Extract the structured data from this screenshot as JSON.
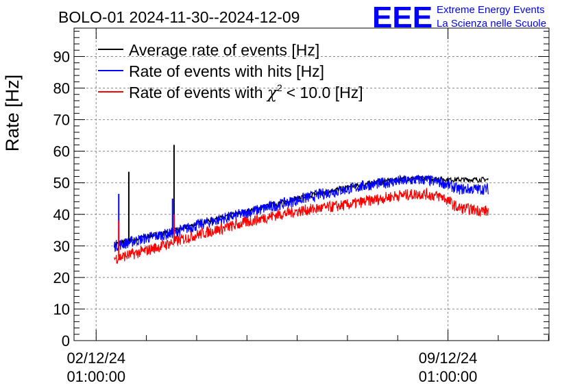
{
  "header": {
    "title": "BOLO-01 2024-11-30--2024-12-09",
    "logo_text": "EEE",
    "logo_line1": "Extreme Energy Events",
    "logo_line2": "La Scienza nelle Scuole"
  },
  "colors": {
    "average": "#000000",
    "hits": "#0000ff",
    "chi2": "#ff0000",
    "logo": "#0000ff",
    "grid": "#888888"
  },
  "chart_data": {
    "type": "line",
    "title": "BOLO-01 2024-11-30--2024-12-09",
    "ylabel": "Rate [Hz]",
    "xlabel": "",
    "ylim": [
      0,
      99
    ],
    "xlim_days": [
      -0.44,
      9.01
    ],
    "x_reference": "02/12/24 01:00:00",
    "grid": true,
    "legend_position": "top-left",
    "y_ticks": [
      0,
      10,
      20,
      30,
      40,
      50,
      60,
      70,
      80,
      90
    ],
    "x_ticks": [
      {
        "day": 0,
        "date": "02/12/24",
        "time": "01:00:00"
      },
      {
        "day": 7,
        "date": "09/12/24",
        "time": "01:00:00"
      }
    ],
    "series": [
      {
        "name": "Average rate of events [Hz]",
        "legend_label": "Average rate of events [Hz]",
        "color": "#000000",
        "noise": 0.8,
        "points": [
          [
            0.36,
            30.5
          ],
          [
            0.5,
            31
          ],
          [
            1.0,
            33
          ],
          [
            1.5,
            34.5
          ],
          [
            2.0,
            37
          ],
          [
            2.5,
            39
          ],
          [
            3.0,
            41
          ],
          [
            3.5,
            43
          ],
          [
            4.0,
            45
          ],
          [
            4.5,
            47
          ],
          [
            5.0,
            48.5
          ],
          [
            5.5,
            50
          ],
          [
            6.0,
            51
          ],
          [
            6.5,
            51.5
          ],
          [
            7.0,
            51
          ],
          [
            7.3,
            51
          ],
          [
            7.8,
            51
          ]
        ],
        "spikes": [
          [
            0.65,
            53.5
          ],
          [
            1.55,
            62
          ]
        ]
      },
      {
        "name": "Rate of events with hits [Hz]",
        "legend_label": "Rate of events with hits [Hz]",
        "color": "#0000ff",
        "noise": 1.8,
        "points": [
          [
            0.36,
            30
          ],
          [
            0.5,
            30.5
          ],
          [
            1.0,
            32.5
          ],
          [
            1.5,
            34
          ],
          [
            2.0,
            36.5
          ],
          [
            2.5,
            38.5
          ],
          [
            3.0,
            40.5
          ],
          [
            3.5,
            42.5
          ],
          [
            4.0,
            44.5
          ],
          [
            4.5,
            46.5
          ],
          [
            5.0,
            48
          ],
          [
            5.5,
            49.5
          ],
          [
            6.0,
            50.5
          ],
          [
            6.5,
            51
          ],
          [
            6.9,
            50
          ],
          [
            7.2,
            48
          ],
          [
            7.8,
            48
          ]
        ],
        "spikes": [
          [
            0.45,
            46.5
          ],
          [
            1.52,
            45
          ]
        ]
      },
      {
        "name": "Rate of events with chi2 < 10.0 [Hz]",
        "legend_label": "Rate of events with",
        "legend_chi": "χ",
        "legend_exp": "2",
        "legend_tail": "< 10.0 [Hz]",
        "color": "#ff0000",
        "noise": 1.8,
        "points": [
          [
            0.36,
            26
          ],
          [
            0.5,
            26.5
          ],
          [
            1.0,
            28.5
          ],
          [
            1.5,
            31
          ],
          [
            2.0,
            33.5
          ],
          [
            2.5,
            35.5
          ],
          [
            3.0,
            37.5
          ],
          [
            3.5,
            39.5
          ],
          [
            4.0,
            41
          ],
          [
            4.5,
            42
          ],
          [
            5.0,
            43
          ],
          [
            5.5,
            44.5
          ],
          [
            6.0,
            46
          ],
          [
            6.5,
            46.5
          ],
          [
            6.9,
            45.5
          ],
          [
            7.2,
            42
          ],
          [
            7.8,
            41
          ]
        ],
        "spikes": [
          [
            0.45,
            38
          ],
          [
            1.55,
            40
          ]
        ]
      }
    ]
  }
}
